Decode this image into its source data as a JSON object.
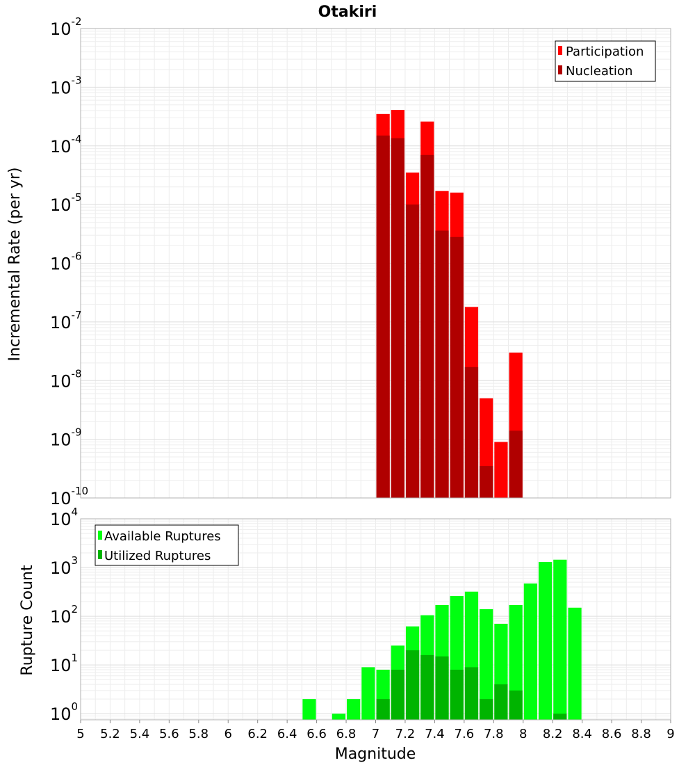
{
  "chart_data": [
    {
      "type": "bar",
      "title": "Otakiri",
      "xlabel": "",
      "ylabel": "Incremental Rate (per yr)",
      "yscale": "log",
      "xlim": [
        5,
        9
      ],
      "ylim": [
        1e-10,
        0.01
      ],
      "ytick_labels": [
        {
          "base": "10",
          "exp": "-10"
        },
        {
          "base": "10",
          "exp": "-9"
        },
        {
          "base": "10",
          "exp": "-8"
        },
        {
          "base": "10",
          "exp": "-7"
        },
        {
          "base": "10",
          "exp": "-6"
        },
        {
          "base": "10",
          "exp": "-5"
        },
        {
          "base": "10",
          "exp": "-4"
        },
        {
          "base": "10",
          "exp": "-3"
        },
        {
          "base": "10",
          "exp": "-2"
        }
      ],
      "x": [
        7.05,
        7.15,
        7.25,
        7.35,
        7.45,
        7.55,
        7.65,
        7.75,
        7.85,
        7.95
      ],
      "series": [
        {
          "name": "Participation",
          "color": "#ff0000",
          "values": [
            0.00035,
            0.00041,
            3.5e-05,
            0.00026,
            1.7e-05,
            1.6e-05,
            1.8e-07,
            5e-09,
            9e-10,
            3e-08
          ]
        },
        {
          "name": "Nucleation",
          "color": "#b00000",
          "values": [
            0.00015,
            0.000135,
            1e-05,
            7e-05,
            3.6e-06,
            2.8e-06,
            1.7e-08,
            3.5e-10,
            null,
            1.4e-09
          ]
        }
      ],
      "grid": true,
      "legend_position": "top-right"
    },
    {
      "type": "bar",
      "title": "",
      "xlabel": "Magnitude",
      "ylabel": "Rupture Count",
      "yscale": "log",
      "xlim": [
        5,
        9
      ],
      "ylim": [
        0.75,
        10000
      ],
      "ytick_labels": [
        {
          "base": "10",
          "exp": "0"
        },
        {
          "base": "10",
          "exp": "1"
        },
        {
          "base": "10",
          "exp": "2"
        },
        {
          "base": "10",
          "exp": "3"
        },
        {
          "base": "10",
          "exp": "4"
        }
      ],
      "xtick_labels": [
        "5",
        "5.2",
        "5.4",
        "5.6",
        "5.8",
        "6",
        "6.2",
        "6.4",
        "6.6",
        "6.8",
        "7",
        "7.2",
        "7.4",
        "7.6",
        "7.8",
        "8",
        "8.2",
        "8.4",
        "8.6",
        "8.8",
        "9"
      ],
      "x": [
        6.55,
        6.75,
        6.85,
        6.95,
        7.05,
        7.15,
        7.25,
        7.35,
        7.45,
        7.55,
        7.65,
        7.75,
        7.85,
        7.95,
        8.05,
        8.15,
        8.25,
        8.35
      ],
      "series": [
        {
          "name": "Available Ruptures",
          "color": "#00ff10",
          "values": [
            2,
            1,
            2,
            9,
            8,
            25,
            62,
            105,
            170,
            260,
            320,
            140,
            70,
            170,
            470,
            1300,
            1450,
            150
          ]
        },
        {
          "name": "Utilized Ruptures",
          "color": "#00b400",
          "values": [
            null,
            null,
            null,
            null,
            2,
            8,
            20,
            16,
            15,
            8,
            9,
            2,
            4,
            3,
            null,
            null,
            1,
            null
          ]
        }
      ],
      "grid": true,
      "legend_position": "top-left"
    }
  ]
}
